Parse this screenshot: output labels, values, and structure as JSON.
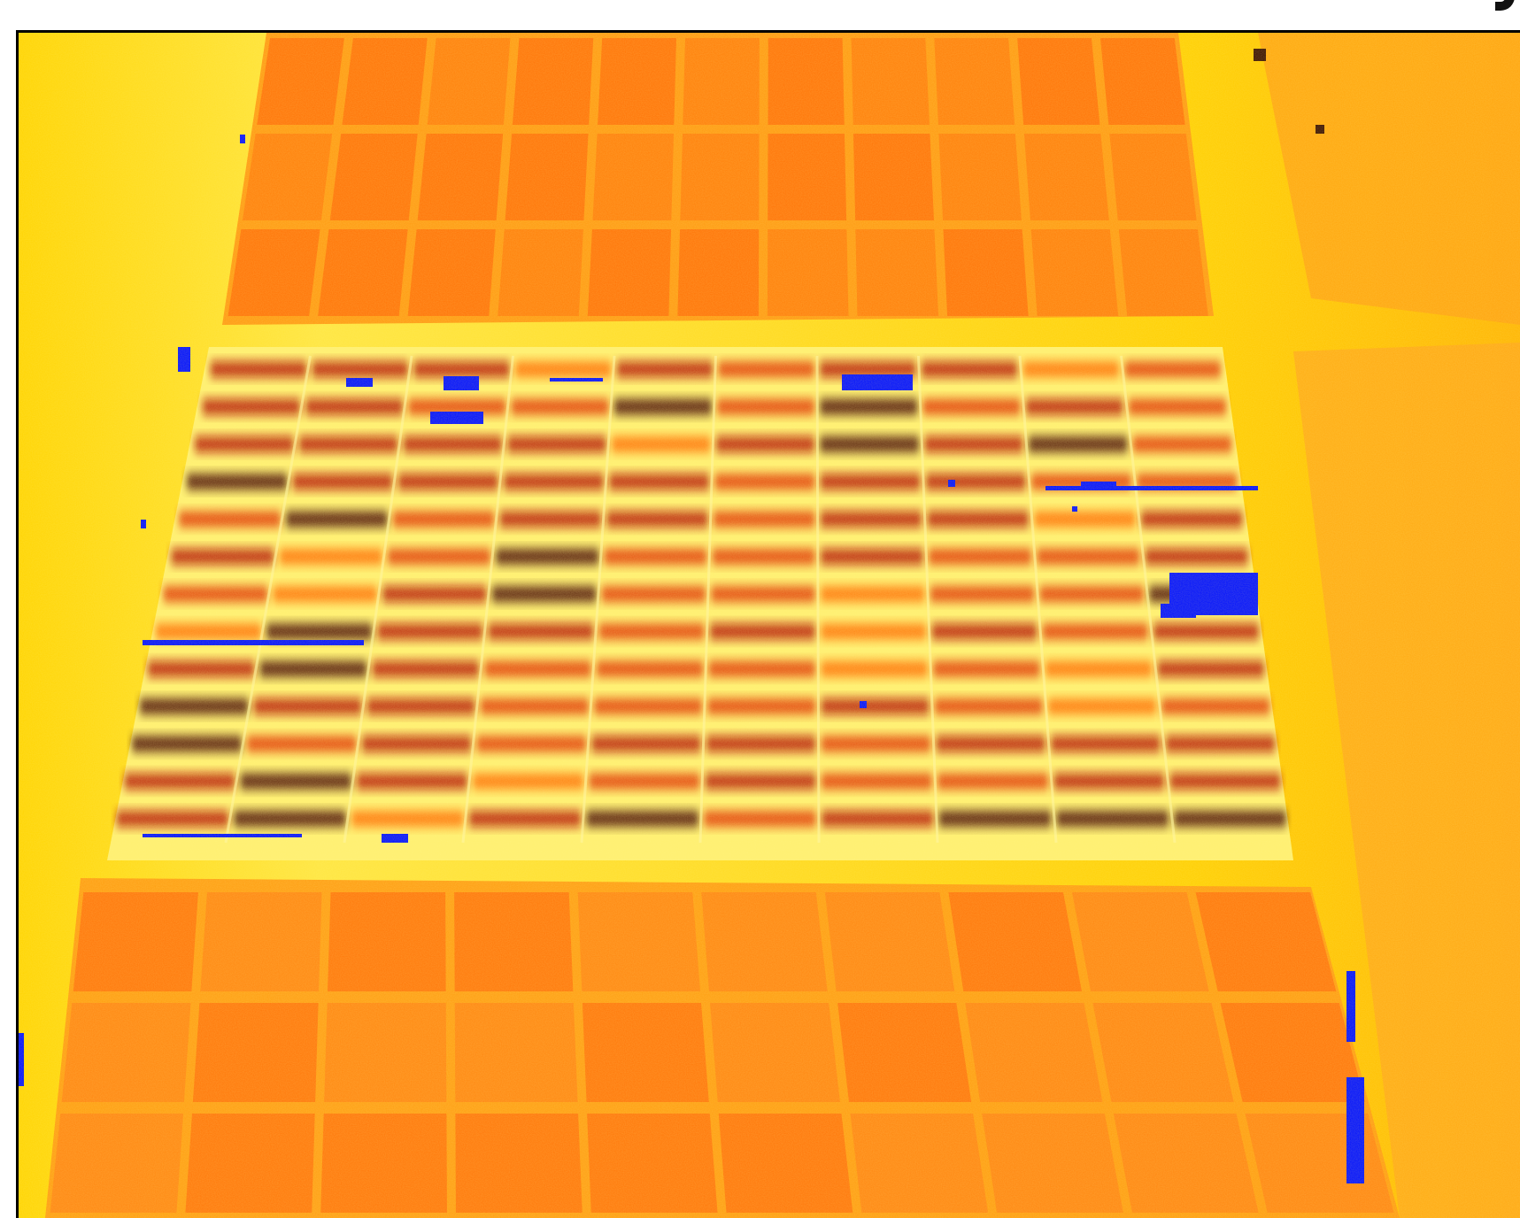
{
  "image": {
    "kind": "thermal-false-color aerial field image",
    "palette": {
      "cool": "#ffffb0",
      "warm_light": "#ffe000",
      "warm_mid": "#ff9a10",
      "hot": "#e03000",
      "hottest": "#400000",
      "masked": "#0010ff"
    },
    "layout_summary": {
      "upper_field_blocks": 11,
      "central_plot_rows": 13,
      "lower_field_blocks": 10
    }
  }
}
